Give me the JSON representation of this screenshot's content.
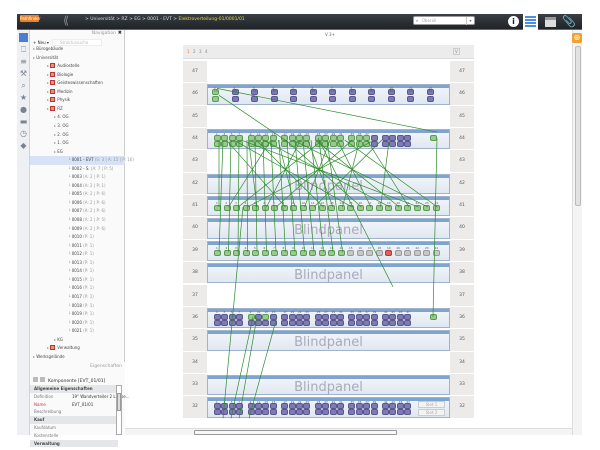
{
  "topbar": {
    "logo": "Pathfinder",
    "breadcrumb": [
      "Universität",
      "RZ",
      "EG",
      "0001 - EVT"
    ],
    "current": "Elektroverteilung-01/0001/01",
    "search_placeholder": "Überall",
    "icons": [
      "info-icon",
      "rack-view-icon",
      "window-icon",
      "paperclip-icon"
    ]
  },
  "nav": {
    "title": "Navigation",
    "new_label": "Neu",
    "search_placeholder": "Struktursuche",
    "tree": [
      {
        "label": "Bürogebäude",
        "level": 0
      },
      {
        "label": "Universität",
        "level": 0
      },
      {
        "label": "Audiostelle",
        "level": 2,
        "icon": true
      },
      {
        "label": "Biologie",
        "level": 2,
        "icon": true
      },
      {
        "label": "Geisteswissenschaften",
        "level": 2,
        "icon": true
      },
      {
        "label": "Medizin",
        "level": 2,
        "icon": true
      },
      {
        "label": "Physik",
        "level": 2,
        "icon": true
      },
      {
        "label": "RZ",
        "level": 2,
        "icon": true
      },
      {
        "label": "4. OG",
        "level": 3
      },
      {
        "label": "3. OG",
        "level": 3
      },
      {
        "label": "2. OG",
        "level": 3
      },
      {
        "label": "1. OG",
        "level": 3
      },
      {
        "label": "EG",
        "level": 3
      },
      {
        "label": "0001 - EVT",
        "meta": "(S: 3 | A: 15 | P: 16)",
        "level": 4,
        "selected": true
      },
      {
        "label": "0002 - S.",
        "meta": "(A: 7 | P: 5)",
        "level": 4
      },
      {
        "label": "0003",
        "meta": "(A: 2 | P: 1)",
        "level": 4
      },
      {
        "label": "0004",
        "meta": "(A: 2 | P: 1)",
        "level": 4
      },
      {
        "label": "0005",
        "meta": "(A: 2 | P: 6)",
        "level": 4
      },
      {
        "label": "0006",
        "meta": "(A: 2 | P: 6)",
        "level": 4
      },
      {
        "label": "0007",
        "meta": "(A: 2 | P: 6)",
        "level": 4
      },
      {
        "label": "0008",
        "meta": "(A: 2 | P: 5)",
        "level": 4
      },
      {
        "label": "0009",
        "meta": "(A: 2 | P: 6)",
        "level": 4
      },
      {
        "label": "0010",
        "meta": "(P: 1)",
        "level": 4
      },
      {
        "label": "0011",
        "meta": "(P: 1)",
        "level": 4
      },
      {
        "label": "0012",
        "meta": "(P: 1)",
        "level": 4
      },
      {
        "label": "0013",
        "meta": "(P: 1)",
        "level": 4
      },
      {
        "label": "0014",
        "meta": "(P: 1)",
        "level": 4
      },
      {
        "label": "0015",
        "meta": "(P: 1)",
        "level": 4
      },
      {
        "label": "0016",
        "meta": "(P: 1)",
        "level": 4
      },
      {
        "label": "0017",
        "meta": "(P: 1)",
        "level": 4
      },
      {
        "label": "0018",
        "meta": "(P: 1)",
        "level": 4
      },
      {
        "label": "0019",
        "meta": "(P: 1)",
        "level": 4
      },
      {
        "label": "0020",
        "meta": "(P: 1)",
        "level": 4
      },
      {
        "label": "0021",
        "meta": "(P: 1)",
        "level": 4
      },
      {
        "label": "KG",
        "level": 3
      },
      {
        "label": "Verwaltung",
        "level": 2,
        "icon": true
      },
      {
        "label": "Werksgelände",
        "level": 0
      }
    ]
  },
  "props": {
    "title": "Eigenschaften",
    "component": "Komponente [EVT_01/01]",
    "rows": [
      {
        "label": "Allgemeine Eigenschaften",
        "group": true
      },
      {
        "label": "Definition",
        "value": "19\" Wandverteiler 2 LR (se..."
      },
      {
        "label": "Name",
        "value": "EVT_01/01",
        "red": true
      },
      {
        "label": "Beschreibung",
        "value": ""
      },
      {
        "label": "Kauf",
        "group": true
      },
      {
        "label": "Kaufdatum",
        "value": ""
      },
      {
        "label": "Kostenstelle",
        "value": ""
      },
      {
        "label": "Verwaltung",
        "group": true
      }
    ]
  },
  "main": {
    "zoom_label": "V 3+",
    "pages": [
      "1",
      "2",
      "3",
      "4"
    ],
    "view_btn": "V",
    "units": [
      "47",
      "46",
      "45",
      "44",
      "43",
      "42",
      "41",
      "40",
      "39",
      "38",
      "37",
      "36",
      "35",
      "34",
      "33",
      "32"
    ],
    "devices": [
      {
        "unit": "46",
        "type": "patch24ab",
        "green": [
          1,
          13
        ]
      },
      {
        "unit": "44",
        "type": "switch",
        "green": [
          1,
          2,
          3,
          4,
          5,
          6,
          7,
          8,
          9,
          10,
          11,
          12,
          13,
          14,
          15,
          16,
          17,
          18,
          19,
          20,
          21,
          22,
          23,
          24,
          25,
          26,
          27,
          28,
          29,
          30,
          31,
          32,
          33,
          34,
          35,
          36,
          37,
          38
        ]
      },
      {
        "unit": "42",
        "type": "blind",
        "label": "Blindpanel"
      },
      {
        "unit": "41",
        "type": "patch24",
        "green": [
          1,
          2,
          3,
          4,
          5,
          6,
          7,
          8,
          9,
          10,
          11,
          12,
          13,
          14,
          15,
          16,
          17,
          18,
          19,
          20,
          21,
          22,
          23,
          24
        ]
      },
      {
        "unit": "40",
        "type": "blind",
        "label": "Blindpanel"
      },
      {
        "unit": "39",
        "type": "patch24",
        "green": [
          1,
          2,
          3,
          4,
          5,
          6,
          7,
          8,
          9,
          10,
          11,
          12,
          13,
          14
        ],
        "red": [
          19
        ]
      },
      {
        "unit": "38",
        "type": "blind",
        "label": "Blindpanel"
      },
      {
        "unit": "36",
        "type": "switch48",
        "green": [
          9,
          13
        ]
      },
      {
        "unit": "35",
        "type": "blind",
        "label": "Blindpanel"
      },
      {
        "unit": "33",
        "type": "blind",
        "label": "Blindpanel"
      },
      {
        "unit": "32",
        "type": "switch48slots",
        "green": [],
        "slots": [
          "Slot 1",
          "Slot 2"
        ]
      }
    ]
  },
  "colors": {
    "accent": "#e8822a",
    "cable": "#2e8b2e",
    "port_connected": "#9cc98f",
    "port_error": "#e06060",
    "topbar": "#2a2e33"
  }
}
